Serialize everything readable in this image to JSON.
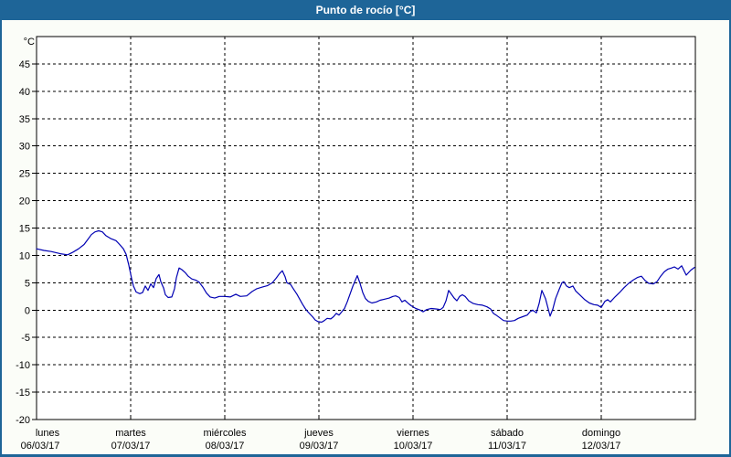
{
  "title_bar": {
    "title": "Punto de rocío [°C]"
  },
  "colors": {
    "titlebar_bg": "#1e6598",
    "titlebar_text": "#ffffff",
    "frame_border": "#1e6598",
    "page_bg": "#fbfdf8",
    "plot_bg": "#ffffff",
    "axis": "#000000",
    "grid": "#000000",
    "line": "#0000b3",
    "text": "#000000"
  },
  "chart_data": {
    "type": "line",
    "title": "Punto de rocío [°C]",
    "y_unit_label": "°C",
    "ylim": [
      -20,
      50
    ],
    "y_ticks": [
      45,
      40,
      35,
      30,
      25,
      20,
      15,
      10,
      5,
      0,
      -5,
      -10,
      -15,
      -20
    ],
    "x_range_days": [
      0,
      7
    ],
    "grid_style": "dashed",
    "legend": "none",
    "x_days": [
      {
        "name": "lunes",
        "date": "06/03/17"
      },
      {
        "name": "martes",
        "date": "07/03/17"
      },
      {
        "name": "miércoles",
        "date": "08/03/17"
      },
      {
        "name": "jueves",
        "date": "09/03/17"
      },
      {
        "name": "viernes",
        "date": "10/03/17"
      },
      {
        "name": "sábado",
        "date": "11/03/17"
      },
      {
        "name": "domingo",
        "date": "12/03/17"
      }
    ],
    "series": [
      {
        "name": "Punto de rocío",
        "unit": "°C",
        "points": [
          [
            0.0,
            11.2
          ],
          [
            0.078,
            10.9
          ],
          [
            0.155,
            10.7
          ],
          [
            0.252,
            10.3
          ],
          [
            0.33,
            10.1
          ],
          [
            0.388,
            10.6
          ],
          [
            0.447,
            11.2
          ],
          [
            0.505,
            12.0
          ],
          [
            0.544,
            12.9
          ],
          [
            0.583,
            13.8
          ],
          [
            0.621,
            14.3
          ],
          [
            0.66,
            14.5
          ],
          [
            0.699,
            14.3
          ],
          [
            0.738,
            13.6
          ],
          [
            0.786,
            13.1
          ],
          [
            0.845,
            12.7
          ],
          [
            0.883,
            12.0
          ],
          [
            0.922,
            11.2
          ],
          [
            0.951,
            10.2
          ],
          [
            0.981,
            8.2
          ],
          [
            1.01,
            5.8
          ],
          [
            1.029,
            4.4
          ],
          [
            1.058,
            3.3
          ],
          [
            1.097,
            3.0
          ],
          [
            1.126,
            3.2
          ],
          [
            1.155,
            4.4
          ],
          [
            1.184,
            3.6
          ],
          [
            1.214,
            4.8
          ],
          [
            1.243,
            4.1
          ],
          [
            1.272,
            5.8
          ],
          [
            1.301,
            6.5
          ],
          [
            1.32,
            5.2
          ],
          [
            1.35,
            4.0
          ],
          [
            1.369,
            2.8
          ],
          [
            1.398,
            2.3
          ],
          [
            1.437,
            2.4
          ],
          [
            1.466,
            3.9
          ],
          [
            1.485,
            5.9
          ],
          [
            1.515,
            7.7
          ],
          [
            1.544,
            7.4
          ],
          [
            1.583,
            6.8
          ],
          [
            1.612,
            6.2
          ],
          [
            1.65,
            5.7
          ],
          [
            1.689,
            5.5
          ],
          [
            1.728,
            5.1
          ],
          [
            1.767,
            4.2
          ],
          [
            1.806,
            3.1
          ],
          [
            1.845,
            2.4
          ],
          [
            1.893,
            2.2
          ],
          [
            1.942,
            2.5
          ],
          [
            2.0,
            2.5
          ],
          [
            2.058,
            2.4
          ],
          [
            2.117,
            2.9
          ],
          [
            2.165,
            2.5
          ],
          [
            2.233,
            2.6
          ],
          [
            2.291,
            3.4
          ],
          [
            2.34,
            3.9
          ],
          [
            2.398,
            4.2
          ],
          [
            2.456,
            4.5
          ],
          [
            2.505,
            5.0
          ],
          [
            2.544,
            5.8
          ],
          [
            2.583,
            6.7
          ],
          [
            2.612,
            7.2
          ],
          [
            2.641,
            6.1
          ],
          [
            2.66,
            5.0
          ],
          [
            2.699,
            4.7
          ],
          [
            2.728,
            3.9
          ],
          [
            2.767,
            2.9
          ],
          [
            2.796,
            2.0
          ],
          [
            2.825,
            1.1
          ],
          [
            2.854,
            0.3
          ],
          [
            2.883,
            -0.3
          ],
          [
            2.932,
            -1.2
          ],
          [
            2.961,
            -1.8
          ],
          [
            2.99,
            -2.1
          ],
          [
            3.029,
            -2.2
          ],
          [
            3.058,
            -1.9
          ],
          [
            3.087,
            -1.5
          ],
          [
            3.126,
            -1.6
          ],
          [
            3.155,
            -1.2
          ],
          [
            3.184,
            -0.6
          ],
          [
            3.214,
            -0.9
          ],
          [
            3.243,
            -0.3
          ],
          [
            3.272,
            0.3
          ],
          [
            3.301,
            1.5
          ],
          [
            3.33,
            2.9
          ],
          [
            3.359,
            4.3
          ],
          [
            3.388,
            5.5
          ],
          [
            3.408,
            6.3
          ],
          [
            3.437,
            4.9
          ],
          [
            3.466,
            3.2
          ],
          [
            3.495,
            2.1
          ],
          [
            3.524,
            1.6
          ],
          [
            3.563,
            1.3
          ],
          [
            3.612,
            1.5
          ],
          [
            3.65,
            1.8
          ],
          [
            3.699,
            2.0
          ],
          [
            3.748,
            2.2
          ],
          [
            3.786,
            2.5
          ],
          [
            3.816,
            2.6
          ],
          [
            3.854,
            2.3
          ],
          [
            3.883,
            1.5
          ],
          [
            3.913,
            1.8
          ],
          [
            3.951,
            1.2
          ],
          [
            3.981,
            0.8
          ],
          [
            4.029,
            0.3
          ],
          [
            4.078,
            0.0
          ],
          [
            4.107,
            -0.3
          ],
          [
            4.146,
            0.1
          ],
          [
            4.194,
            0.3
          ],
          [
            4.252,
            0.2
          ],
          [
            4.291,
            0.1
          ],
          [
            4.32,
            0.5
          ],
          [
            4.35,
            1.7
          ],
          [
            4.379,
            3.6
          ],
          [
            4.408,
            2.9
          ],
          [
            4.437,
            2.2
          ],
          [
            4.466,
            1.7
          ],
          [
            4.495,
            2.5
          ],
          [
            4.524,
            2.8
          ],
          [
            4.553,
            2.5
          ],
          [
            4.592,
            1.7
          ],
          [
            4.641,
            1.2
          ],
          [
            4.689,
            1.0
          ],
          [
            4.738,
            0.9
          ],
          [
            4.786,
            0.6
          ],
          [
            4.825,
            0.2
          ],
          [
            4.854,
            -0.6
          ],
          [
            4.883,
            -0.9
          ],
          [
            4.922,
            -1.4
          ],
          [
            4.961,
            -1.9
          ],
          [
            5.0,
            -2.0
          ],
          [
            5.039,
            -2.0
          ],
          [
            5.078,
            -1.9
          ],
          [
            5.117,
            -1.5
          ],
          [
            5.165,
            -1.2
          ],
          [
            5.214,
            -0.9
          ],
          [
            5.243,
            -0.3
          ],
          [
            5.272,
            0.0
          ],
          [
            5.311,
            -0.5
          ],
          [
            5.34,
            1.2
          ],
          [
            5.369,
            3.6
          ],
          [
            5.408,
            2.1
          ],
          [
            5.437,
            0.2
          ],
          [
            5.456,
            -1.1
          ],
          [
            5.485,
            0.2
          ],
          [
            5.515,
            2.1
          ],
          [
            5.553,
            3.8
          ],
          [
            5.583,
            5.0
          ],
          [
            5.602,
            5.2
          ],
          [
            5.631,
            4.4
          ],
          [
            5.66,
            4.1
          ],
          [
            5.699,
            4.4
          ],
          [
            5.728,
            3.5
          ],
          [
            5.777,
            2.7
          ],
          [
            5.825,
            1.9
          ],
          [
            5.874,
            1.3
          ],
          [
            5.922,
            1.0
          ],
          [
            5.961,
            0.9
          ],
          [
            6.0,
            0.5
          ],
          [
            6.039,
            1.6
          ],
          [
            6.068,
            1.9
          ],
          [
            6.097,
            1.5
          ],
          [
            6.146,
            2.4
          ],
          [
            6.194,
            3.2
          ],
          [
            6.243,
            4.1
          ],
          [
            6.291,
            4.9
          ],
          [
            6.34,
            5.5
          ],
          [
            6.388,
            6.0
          ],
          [
            6.427,
            6.2
          ],
          [
            6.466,
            5.4
          ],
          [
            6.505,
            4.9
          ],
          [
            6.553,
            4.8
          ],
          [
            6.592,
            5.2
          ],
          [
            6.631,
            6.2
          ],
          [
            6.67,
            7.0
          ],
          [
            6.709,
            7.5
          ],
          [
            6.748,
            7.7
          ],
          [
            6.777,
            7.9
          ],
          [
            6.816,
            7.5
          ],
          [
            6.854,
            8.1
          ],
          [
            6.903,
            6.4
          ],
          [
            6.951,
            7.3
          ],
          [
            6.99,
            7.8
          ]
        ]
      }
    ]
  }
}
